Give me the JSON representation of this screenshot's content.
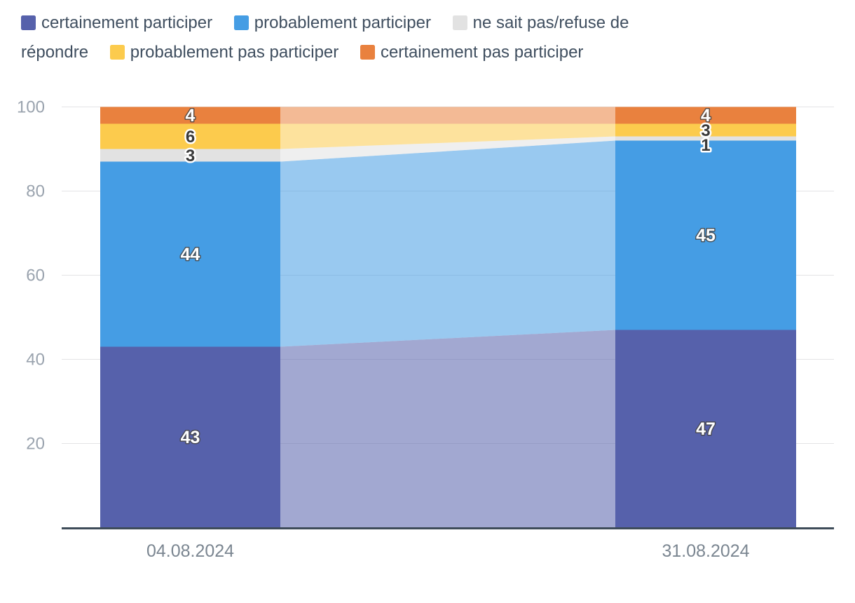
{
  "chart_data": {
    "type": "bar",
    "variant": "stacked-columns-with-connecting-areas",
    "title": "",
    "xlabel": "",
    "ylabel": "",
    "categories": [
      "04.08.2024",
      "31.08.2024"
    ],
    "series": [
      {
        "name": "certainement participer",
        "color": "#5661ab",
        "values": [
          43,
          47
        ]
      },
      {
        "name": "probablement participer",
        "color": "#459de4",
        "values": [
          44,
          45
        ]
      },
      {
        "name": "ne sait pas/refuse de répondre",
        "color": "#e2e2e2",
        "values": [
          3,
          1
        ]
      },
      {
        "name": "probablement pas participer",
        "color": "#fccb4d",
        "values": [
          6,
          3
        ]
      },
      {
        "name": "certainement pas participer",
        "color": "#e9813e",
        "values": [
          4,
          4
        ]
      }
    ],
    "stack_order": "bottom_to_top",
    "ylim": [
      0,
      100
    ],
    "yticks": [
      20,
      40,
      60,
      80,
      100
    ],
    "grid": "horizontal",
    "legend_position": "top",
    "connector_opacity": 0.55,
    "value_labels_visible": true,
    "axis_color": "#3e4c59",
    "gridline_color": "#e4e4e6",
    "tick_label_color": "#9aa3ae",
    "date_label_color": "#7b8691",
    "legend_text_color": "#3f4e5f"
  }
}
